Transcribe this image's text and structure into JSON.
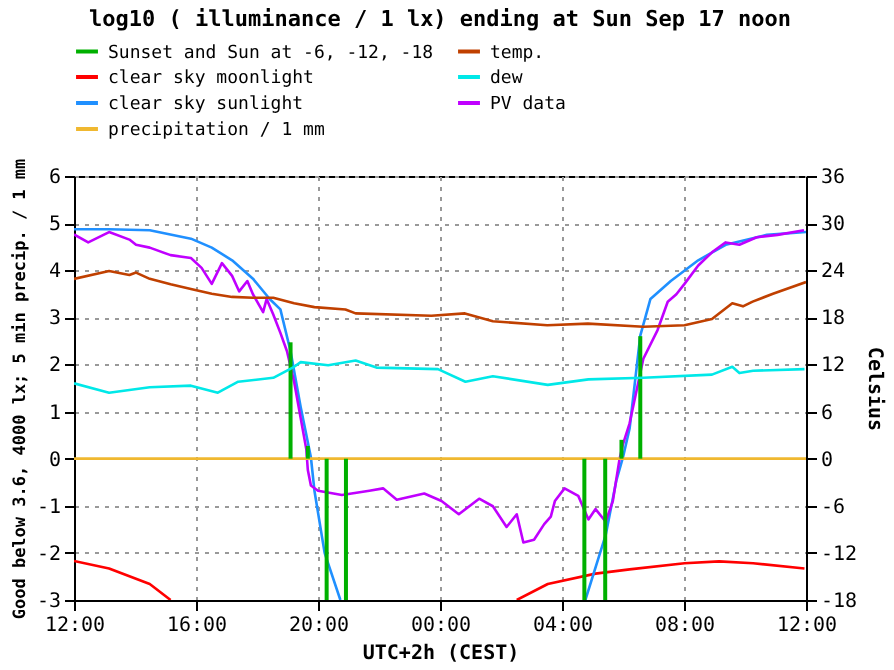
{
  "chart_data": {
    "type": "line",
    "title": "log10 ( illuminance / 1 lx) ending at Sun Sep 17 noon",
    "xlabel": "UTC+2h (CEST)",
    "ylabel": "Good below 3.6, 4000 lx; 5 min precip. / 1 mm",
    "y2label": "Celsius",
    "xlim": [
      "--09-16T12:00",
      "--09-17T12:00"
    ],
    "xticks": [
      {
        "value": "--09-16T12:00",
        "label": "12:00"
      },
      {
        "value": "--09-16T16:00",
        "label": "16:00"
      },
      {
        "value": "--09-16T20:00",
        "label": "20:00"
      },
      {
        "value": "--09-17T00:00",
        "label": "00:00"
      },
      {
        "value": "--09-17T04:00",
        "label": "04:00"
      },
      {
        "value": "--09-17T08:00",
        "label": "08:00"
      },
      {
        "value": "--09-17T12:00",
        "label": "12:00"
      }
    ],
    "ylim": [
      -3,
      6
    ],
    "yticks": [
      -3,
      -2,
      -1,
      0,
      1,
      2,
      3,
      4,
      5,
      6
    ],
    "y2lim": [
      -18,
      36
    ],
    "y2ticks": [
      -18,
      -12,
      -6,
      0,
      6,
      12,
      18,
      24,
      30,
      36
    ],
    "grid": true,
    "legend": "top",
    "series": [
      {
        "name": "Sunset and Sun at -6, -12, -18",
        "type": "bar",
        "color": "#00b000",
        "x": [
          "--09-16T19:06",
          "--09-16T19:40",
          "--09-16T20:17",
          "--09-16T20:55",
          "--09-17T04:44",
          "--09-17T05:25",
          "--09-17T05:57",
          "--09-17T06:34"
        ],
        "values": [
          2.47,
          0.27,
          -3,
          -3,
          -3,
          -3,
          0.4,
          2.6
        ]
      },
      {
        "name": "temp.",
        "color": "#c04000",
        "axis": "y2",
        "x": [
          "--09-16T12:00",
          "--09-16T13:09",
          "--09-16T13:49",
          "--09-16T14:02",
          "--09-16T14:29",
          "--09-16T15:10",
          "--09-16T15:50",
          "--09-16T16:31",
          "--09-16T17:11",
          "--09-16T17:52",
          "--09-16T18:32",
          "--09-16T19:13",
          "--09-16T19:53",
          "--09-16T20:54",
          "--09-16T21:14",
          "--09-16T23:43",
          "--09-17T00:49",
          "--09-17T01:44",
          "--09-17T03:31",
          "--09-17T04:51",
          "--09-17T06:40",
          "--09-17T08:01",
          "--09-17T08:55",
          "--09-17T09:35",
          "--09-17T09:56",
          "--09-17T10:15",
          "--09-17T10:55",
          "--09-17T12:00"
        ],
        "values": [
          22.9,
          23.9,
          23.4,
          23.7,
          22.9,
          22.2,
          21.6,
          21.0,
          20.6,
          20.5,
          20.5,
          19.8,
          19.3,
          19.0,
          18.5,
          18.2,
          18.5,
          17.5,
          17.0,
          17.2,
          16.8,
          17.0,
          17.8,
          19.8,
          19.4,
          20.0,
          21.0,
          22.5
        ]
      },
      {
        "name": "clear sky moonlight",
        "color": "#ff0000",
        "x": [
          "--09-16T12:00",
          "--09-16T13:09",
          "--09-16T14:29",
          "--09-16T15:10",
          "--09-16T20:00",
          "--09-17T02:31",
          "--09-17T03:32",
          "--09-17T05:06",
          "--09-17T06:13",
          "--09-17T08:01",
          "--09-17T09:09",
          "--09-17T10:16",
          "--09-17T11:57"
        ],
        "values": [
          -2.17,
          -2.33,
          -2.66,
          -3.0,
          null,
          -3.0,
          -2.66,
          -2.44,
          -2.35,
          -2.22,
          -2.18,
          -2.22,
          -2.33
        ]
      },
      {
        "name": "dew",
        "color": "#00e8e8",
        "axis": "y2",
        "x": [
          "--09-16T12:00",
          "--09-16T13:09",
          "--09-16T14:29",
          "--09-16T15:50",
          "--09-16T16:43",
          "--09-16T17:23",
          "--09-16T18:32",
          "--09-16T19:13",
          "--09-16T19:26",
          "--09-16T20:20",
          "--09-16T21:14",
          "--09-16T21:55",
          "--09-16T23:56",
          "--09-17T00:50",
          "--09-17T01:44",
          "--09-17T03:32",
          "--09-17T04:52",
          "--09-17T06:40",
          "--09-17T08:55",
          "--09-17T09:35",
          "--09-17T09:49",
          "--09-17T10:16",
          "--09-17T11:57"
        ],
        "values": [
          9.6,
          8.4,
          9.1,
          9.3,
          8.4,
          9.8,
          10.3,
          11.7,
          12.3,
          11.9,
          12.5,
          11.6,
          11.4,
          9.8,
          10.5,
          9.4,
          10.1,
          10.3,
          10.7,
          11.7,
          10.9,
          11.2,
          11.4
        ]
      },
      {
        "name": "clear sky sunlight",
        "color": "#2090ff",
        "x": [
          "--09-16T12:00",
          "--09-16T13:09",
          "--09-16T14:29",
          "--09-16T15:50",
          "--09-16T16:31",
          "--09-16T17:11",
          "--09-16T17:52",
          "--09-16T18:25",
          "--09-16T18:46",
          "--09-16T19:06",
          "--09-16T19:26",
          "--09-16T19:46",
          "--09-16T19:53",
          "--09-16T20:13",
          "--09-16T20:44",
          "--09-17T00:00",
          "--09-17T04:46",
          "--09-17T05:26",
          "--09-17T05:47",
          "--09-17T06:00",
          "--09-17T06:13",
          "--09-17T06:34",
          "--09-17T06:54",
          "--09-17T07:34",
          "--09-17T08:28",
          "--09-17T09:22",
          "--09-17T10:43",
          "--09-17T12:00"
        ],
        "values": [
          4.87,
          4.87,
          4.85,
          4.67,
          4.48,
          4.21,
          3.82,
          3.39,
          3.17,
          2.28,
          1.09,
          0.03,
          -0.68,
          -2.0,
          -3.0,
          null,
          -3.0,
          -1.62,
          -0.46,
          0.03,
          0.64,
          2.61,
          3.39,
          3.77,
          4.21,
          4.54,
          4.75,
          4.81
        ]
      },
      {
        "name": "PV data",
        "color": "#c000ff",
        "x": [
          "--09-16T12:00",
          "--09-16T12:28",
          "--09-16T13:09",
          "--09-16T13:49",
          "--09-16T14:02",
          "--09-16T14:29",
          "--09-16T15:10",
          "--09-16T15:50",
          "--09-16T16:11",
          "--09-16T16:31",
          "--09-16T16:51",
          "--09-16T17:11",
          "--09-16T17:25",
          "--09-16T17:41",
          "--09-16T17:52",
          "--09-16T18:12",
          "--09-16T18:19",
          "--09-16T18:32",
          "--09-16T18:46",
          "--09-16T18:59",
          "--09-16T19:13",
          "--09-16T19:26",
          "--09-16T19:37",
          "--09-16T19:40",
          "--09-16T19:46",
          "--09-16T20:00",
          "--09-16T20:47",
          "--09-16T21:41",
          "--09-16T22:08",
          "--09-16T22:35",
          "--09-16T23:29",
          "--09-17T00:03",
          "--09-17T00:37",
          "--09-17T01:17",
          "--09-17T01:44",
          "--09-17T02:11",
          "--09-17T02:31",
          "--09-17T02:44",
          "--09-17T03:05",
          "--09-17T03:25",
          "--09-17T03:38",
          "--09-17T03:46",
          "--09-17T04:05",
          "--09-17T04:32",
          "--09-17T04:52",
          "--09-17T05:06",
          "--09-17T05:26",
          "--09-17T05:40",
          "--09-17T05:53",
          "--09-17T06:00",
          "--09-17T06:13",
          "--09-17T06:40",
          "--09-17T07:08",
          "--09-17T07:28",
          "--09-17T07:45",
          "--09-17T08:01",
          "--09-17T08:28",
          "--09-17T08:55",
          "--09-17T09:22",
          "--09-17T09:49",
          "--09-17T10:23",
          "--09-17T11:04",
          "--09-17T11:56"
        ],
        "values": [
          4.76,
          4.59,
          4.81,
          4.65,
          4.54,
          4.48,
          4.32,
          4.26,
          4.05,
          3.71,
          4.15,
          3.88,
          3.55,
          3.77,
          3.49,
          3.11,
          3.39,
          3.06,
          2.67,
          2.28,
          1.63,
          0.86,
          0.2,
          -0.24,
          -0.57,
          -0.68,
          -0.77,
          -0.68,
          -0.63,
          -0.87,
          -0.74,
          -0.9,
          -1.18,
          -0.85,
          -1.01,
          -1.45,
          -1.18,
          -1.78,
          -1.72,
          -1.39,
          -1.23,
          -0.9,
          -0.63,
          -0.79,
          -1.29,
          -1.07,
          -1.34,
          -0.9,
          -0.02,
          0.31,
          0.75,
          2.12,
          2.73,
          3.33,
          3.49,
          3.71,
          4.1,
          4.38,
          4.59,
          4.54,
          4.7,
          4.75,
          4.85
        ]
      },
      {
        "name": "precipitation / 1 mm",
        "color": "#f0b830",
        "x": [
          "--09-16T12:00",
          "--09-17T12:00"
        ],
        "values": [
          0,
          0
        ]
      }
    ]
  }
}
